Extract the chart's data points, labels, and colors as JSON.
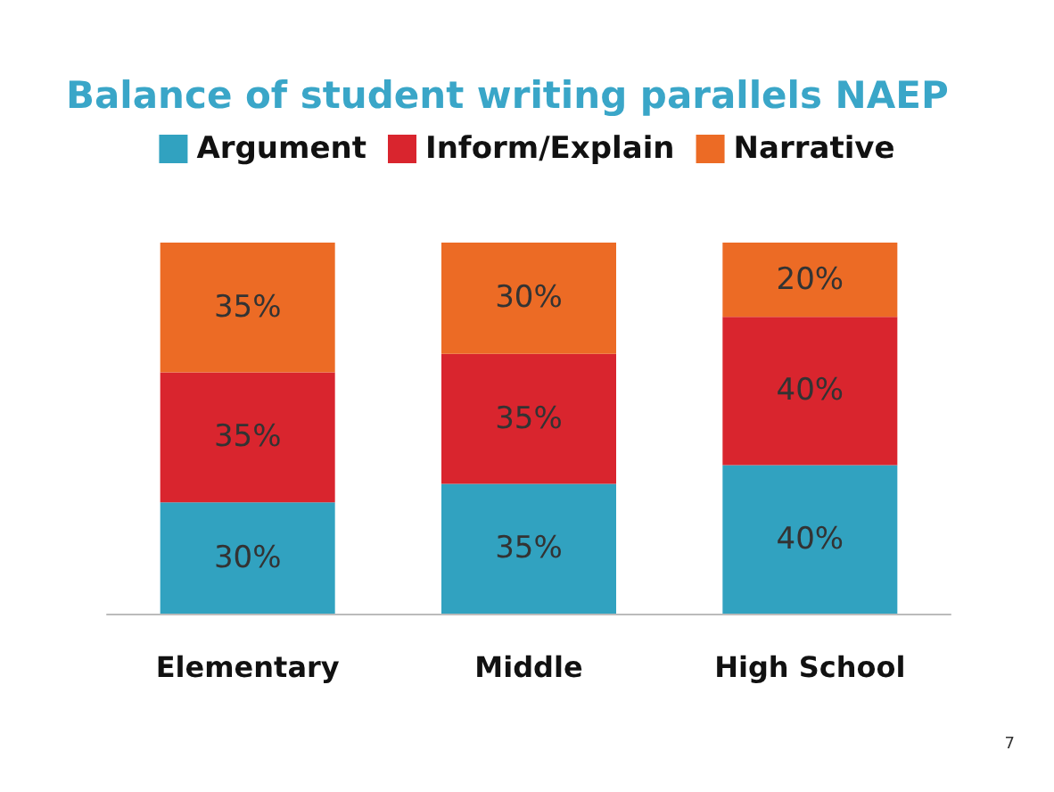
{
  "chart_data": {
    "type": "bar",
    "title": "Balance of student writing parallels NAEP",
    "categories": [
      "Elementary",
      "Middle",
      "High School"
    ],
    "stacked": true,
    "legend": "top",
    "series": [
      {
        "name": "Argument",
        "color": "#31a2c0",
        "values": [
          30,
          35,
          40
        ],
        "value_labels": [
          "30%",
          "35%",
          "40%"
        ]
      },
      {
        "name": "Inform/Explain",
        "color": "#d9252e",
        "values": [
          35,
          35,
          40
        ],
        "value_labels": [
          "35%",
          "35%",
          "40%"
        ]
      },
      {
        "name": "Narrative",
        "color": "#ec6b25",
        "values": [
          35,
          30,
          20
        ],
        "value_labels": [
          "35%",
          "30%",
          "20%"
        ]
      }
    ],
    "annotations": [
      "7"
    ]
  }
}
